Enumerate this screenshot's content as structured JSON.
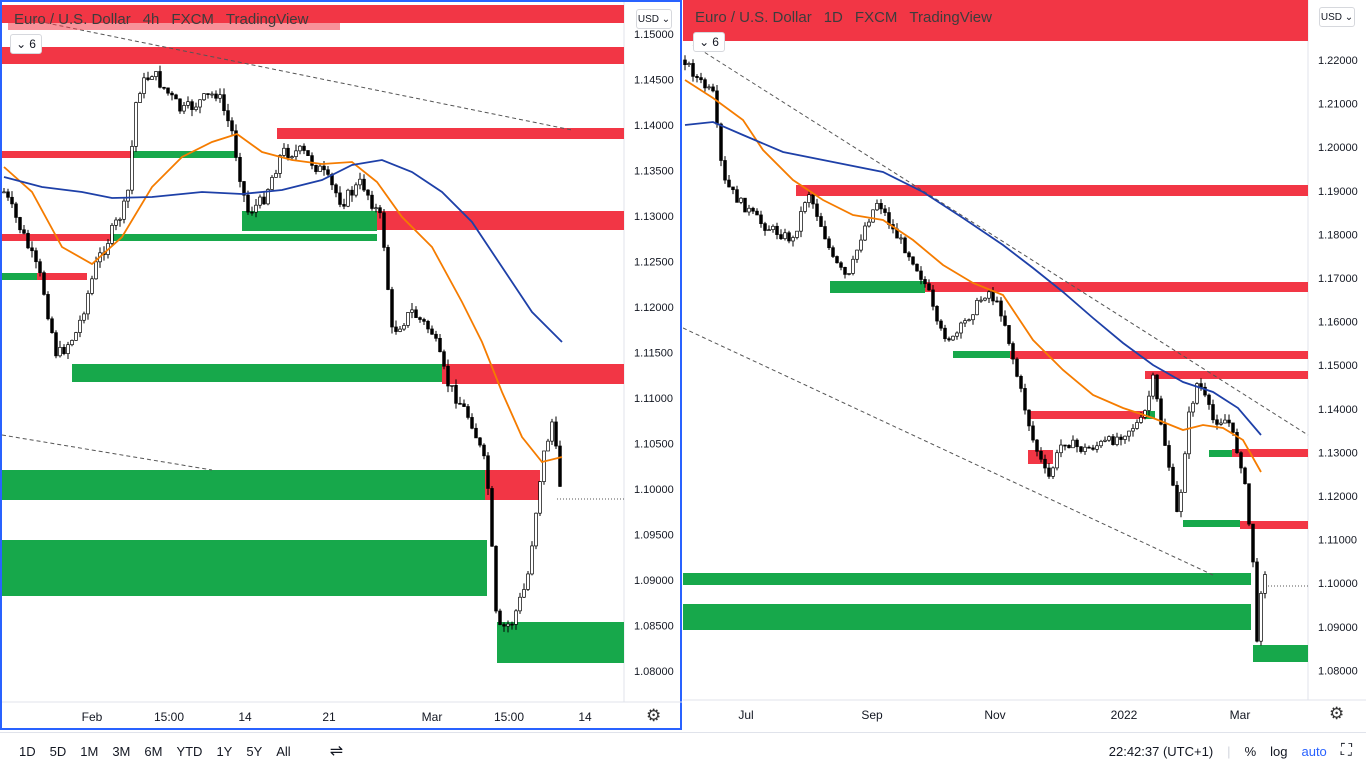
{
  "left_chart": {
    "legend": {
      "symbol": "Euro / U.S. Dollar",
      "interval": "4h",
      "source": "FXCM",
      "platform": "TradingView"
    },
    "indicator_count": "6",
    "currency": "USD",
    "price_labels": [
      "1.15000",
      "1.14500",
      "1.14000",
      "1.13500",
      "1.13000",
      "1.12500",
      "1.12000",
      "1.11500",
      "1.11000",
      "1.10500",
      "1.10000",
      "1.09500",
      "1.09000",
      "1.08500",
      "1.08000"
    ],
    "time_labels": [
      "Feb",
      "15:00",
      "14",
      "21",
      "Mar",
      "15:00",
      "14"
    ]
  },
  "right_chart": {
    "legend": {
      "symbol": "Euro / U.S. Dollar",
      "interval": "1D",
      "source": "FXCM",
      "platform": "TradingView"
    },
    "indicator_count": "6",
    "currency": "USD",
    "price_labels": [
      "1.22000",
      "1.21000",
      "1.20000",
      "1.19000",
      "1.18000",
      "1.17000",
      "1.16000",
      "1.15000",
      "1.14000",
      "1.13000",
      "1.12000",
      "1.11000",
      "1.10000",
      "1.09000",
      "1.08000"
    ],
    "time_labels": [
      "Jul",
      "Sep",
      "Nov",
      "2022",
      "Mar"
    ]
  },
  "colors": {
    "resistance": "#f23645",
    "support": "#17a84b",
    "ema_fast": "#f57c00",
    "ema_slow": "#1e40a8",
    "accent": "#2962ff"
  },
  "toolbar": {
    "ranges": [
      "1D",
      "5D",
      "1M",
      "3M",
      "6M",
      "YTD",
      "1Y",
      "5Y",
      "All"
    ],
    "clock": "22:42:37 (UTC+1)",
    "percent": "%",
    "log": "log",
    "auto": "auto"
  }
}
